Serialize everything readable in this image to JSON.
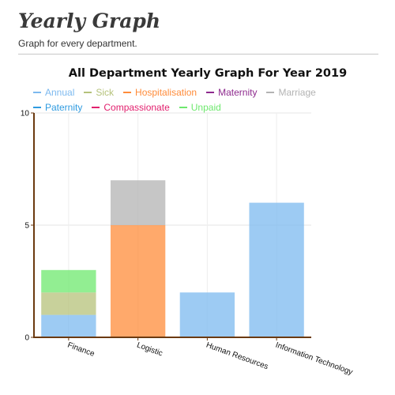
{
  "page": {
    "title": "Yearly Graph",
    "subtitle": "Graph for every department."
  },
  "chart_data": {
    "type": "bar",
    "stacked": true,
    "title": "All Department Yearly Graph For Year 2019",
    "xlabel": "",
    "ylabel": "",
    "ylim": [
      0,
      10
    ],
    "yticks": [
      0,
      5,
      10
    ],
    "grid": true,
    "legend_position": "top",
    "categories": [
      "Finance",
      "Logistic",
      "Human Resources",
      "Information Technology"
    ],
    "series": [
      {
        "name": "Annual",
        "color": "#7cb9ef",
        "values": [
          1,
          0,
          2,
          6
        ]
      },
      {
        "name": "Sick",
        "color": "#b5c27a",
        "values": [
          1,
          0,
          0,
          0
        ]
      },
      {
        "name": "Hospitalisation",
        "color": "#ff8c3a",
        "values": [
          0,
          5,
          0,
          0
        ]
      },
      {
        "name": "Maternity",
        "color": "#8e2a8e",
        "values": [
          0,
          0,
          0,
          0
        ]
      },
      {
        "name": "Marriage",
        "color": "#b3b3b3",
        "values": [
          0,
          2,
          0,
          0
        ]
      },
      {
        "name": "Paternity",
        "color": "#2f9be0",
        "values": [
          0,
          0,
          0,
          0
        ]
      },
      {
        "name": "Compassionate",
        "color": "#e2206e",
        "values": [
          0,
          0,
          0,
          0
        ]
      },
      {
        "name": "Unpaid",
        "color": "#6ee86e",
        "values": [
          1,
          0,
          0,
          0
        ]
      }
    ]
  }
}
